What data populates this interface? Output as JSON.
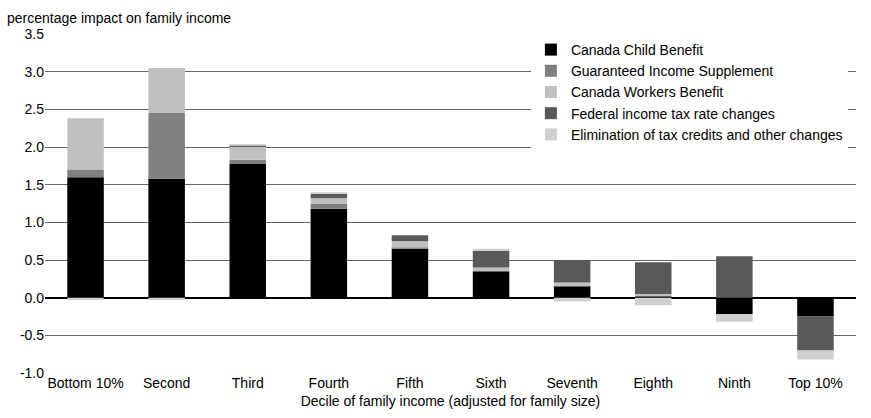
{
  "chart_data": {
    "type": "bar",
    "stacked": true,
    "ylabel": "percentage impact on family income",
    "xlabel": "Decile of family income (adjusted for family size)",
    "categories": [
      "Bottom 10%",
      "Second",
      "Third",
      "Fourth",
      "Fifth",
      "Sixth",
      "Seventh",
      "Eighth",
      "Ninth",
      "Top 10%"
    ],
    "series": [
      {
        "name": "Canada Child Benefit",
        "color": "#000000",
        "values": [
          1.6,
          1.58,
          1.78,
          1.18,
          0.65,
          0.35,
          0.15,
          0.02,
          -0.22,
          -0.25
        ]
      },
      {
        "name": "Guaranteed Income Supplement",
        "color": "#808080",
        "values": [
          0.1,
          0.87,
          0.05,
          0.07,
          0.02,
          0,
          0,
          0,
          0,
          0
        ]
      },
      {
        "name": "Canada Workers Benefit",
        "color": "#c0c0c0",
        "values": [
          0.68,
          0.6,
          0.17,
          0.07,
          0.08,
          0.05,
          0.05,
          0.03,
          0,
          0
        ]
      },
      {
        "name": "Federal income tax rate changes",
        "color": "#595959",
        "values": [
          0,
          0,
          0.02,
          0.06,
          0.08,
          0.22,
          0.3,
          0.42,
          0.55,
          -0.45
        ]
      },
      {
        "name": "Elimination of tax credits and other changes",
        "color": "#d0d0d0",
        "values": [
          -0.03,
          -0.03,
          0.02,
          0.02,
          0,
          0.03,
          -0.05,
          -0.1,
          -0.1,
          -0.12
        ]
      }
    ],
    "ylim": [
      -1,
      3.5
    ],
    "yticks": [
      {
        "value": -1,
        "label": "-1.0"
      },
      -0.5,
      {
        "value": 0,
        "label": "0.0"
      },
      0.5,
      {
        "value": 1,
        "label": "1.0"
      },
      1.5,
      {
        "value": 2,
        "label": "2.0"
      },
      2.5,
      {
        "value": 3,
        "label": "3.0"
      },
      3.5
    ],
    "grid": true,
    "legend": "upper right"
  }
}
